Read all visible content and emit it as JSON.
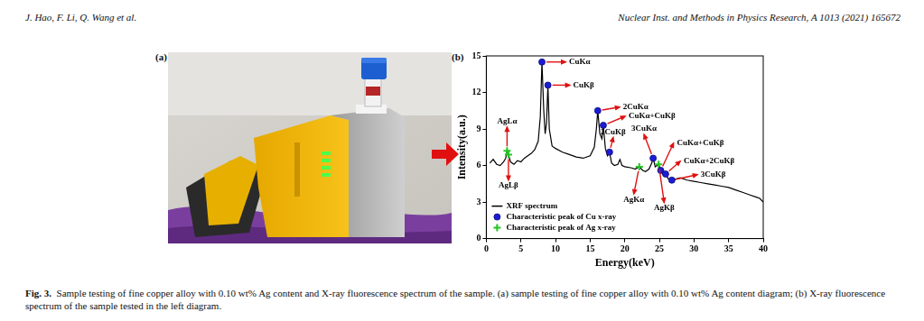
{
  "header": {
    "authors": "J. Hao, F. Li, Q. Wang et al.",
    "journal": "Nuclear Inst. and Methods in Physics Research, A 1013 (2021) 165672"
  },
  "panel_labels": [
    "(a)",
    "(b)"
  ],
  "caption": {
    "label": "Fig. 3.",
    "text": "Sample testing of fine copper alloy with 0.10 wt% Ag content and X-ray fluorescence spectrum of the sample. (a) sample testing of fine copper alloy with 0.10 wt% Ag content diagram; (b) X-ray fluorescence spectrum of the sample tested in the left diagram."
  },
  "chart_data": {
    "type": "line",
    "x_label": "Energy(keV)",
    "y_label": "Intensity(a.u.)",
    "xlim": [
      0,
      40
    ],
    "xticks": [
      0,
      5,
      10,
      15,
      20,
      25,
      30,
      35,
      40
    ],
    "ylim": [
      0,
      15
    ],
    "yticks": [
      0,
      3,
      6,
      9,
      12,
      15
    ],
    "grid": false,
    "legend": "lower left",
    "series": [
      {
        "name": "XRF spectrum",
        "type": "line",
        "color": "#000000",
        "marker": "none",
        "x": [
          0.5,
          1.0,
          1.5,
          2.0,
          2.5,
          2.8,
          3.0,
          3.2,
          3.5,
          4.0,
          4.5,
          5.0,
          5.5,
          6.0,
          6.5,
          7.0,
          7.5,
          7.8,
          8.04,
          8.3,
          8.5,
          8.7,
          8.9,
          9.1,
          9.5,
          10.0,
          11.0,
          12.0,
          13.0,
          14.0,
          15.0,
          15.6,
          15.9,
          16.1,
          16.4,
          16.7,
          16.9,
          17.2,
          17.5,
          17.8,
          18.1,
          18.5,
          19.0,
          19.3,
          19.6,
          20.0,
          21.0,
          21.5,
          22.1,
          22.6,
          23.0,
          23.5,
          23.9,
          24.1,
          24.4,
          24.9,
          25.2,
          25.6,
          25.9,
          26.3,
          26.8,
          27.5,
          28.0,
          29.0,
          30.0,
          31.0,
          32.0,
          33.0,
          34.0,
          35.0,
          36.0,
          37.0,
          38.0,
          39.0,
          39.5,
          40.0
        ],
        "values": [
          6.2,
          6.5,
          6.1,
          6.0,
          6.3,
          6.6,
          7.2,
          6.9,
          6.3,
          6.1,
          6.4,
          6.3,
          6.6,
          6.8,
          7.0,
          7.3,
          8.0,
          10.0,
          14.5,
          10.5,
          8.6,
          9.5,
          12.6,
          9.0,
          7.6,
          7.4,
          7.1,
          6.9,
          6.7,
          6.6,
          6.8,
          7.5,
          9.0,
          10.5,
          8.6,
          8.2,
          9.3,
          7.4,
          6.8,
          7.1,
          6.2,
          6.0,
          6.1,
          6.5,
          6.0,
          5.9,
          5.8,
          5.7,
          5.9,
          5.6,
          5.5,
          5.7,
          6.2,
          6.6,
          5.9,
          6.1,
          5.6,
          5.2,
          5.3,
          4.9,
          4.8,
          4.9,
          5.0,
          4.8,
          4.7,
          4.6,
          4.5,
          4.4,
          4.3,
          4.2,
          4.0,
          3.8,
          3.6,
          3.4,
          3.3,
          3.0
        ]
      },
      {
        "name": "Characteristic peak of Cu x-ray",
        "type": "scatter",
        "color": "#1c1cd8",
        "marker": "circle",
        "x": [
          8.04,
          8.9,
          16.1,
          16.9,
          17.8,
          24.1,
          25.2,
          25.9,
          26.8
        ],
        "values": [
          14.5,
          12.6,
          10.5,
          9.3,
          7.1,
          6.6,
          5.6,
          5.3,
          4.8
        ],
        "point_labels": [
          "CuKα",
          "CuKβ",
          "2CuKα",
          "CuKα+CuKβ",
          "2CuKβ",
          "3CuKα",
          "CuKα+CuKβ",
          "CuKα+2CuKβ",
          "3CuKβ"
        ]
      },
      {
        "name": "Characteristic peak of Ag x-ray",
        "type": "scatter",
        "color": "#22c422",
        "marker": "plus",
        "x": [
          3.0,
          3.2,
          22.1,
          24.9
        ],
        "values": [
          7.2,
          6.9,
          5.9,
          6.1
        ],
        "point_labels": [
          "AgLα",
          "AgLβ",
          "AgKα",
          "AgKβ"
        ]
      }
    ]
  }
}
